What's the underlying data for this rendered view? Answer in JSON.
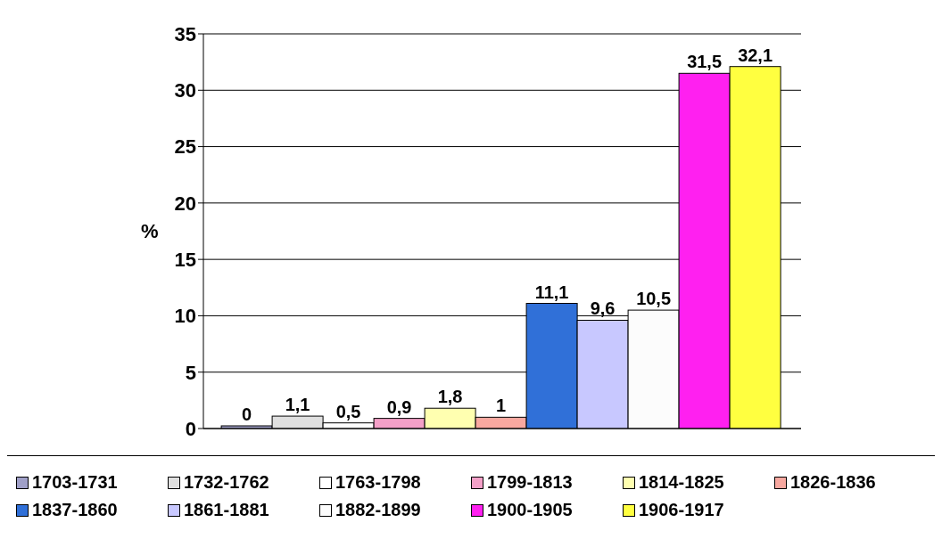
{
  "chart_data": {
    "type": "bar",
    "ylabel": "%",
    "categories": [
      null
    ],
    "ylim": [
      0,
      35
    ],
    "yticks": [
      0,
      5,
      10,
      15,
      20,
      25,
      30,
      35
    ],
    "grid": "y",
    "legend": "bottom",
    "series": [
      {
        "name": "1703-1731",
        "color": "#a0a0c8",
        "values": [
          0
        ],
        "value_labels": [
          "0"
        ]
      },
      {
        "name": "1732-1762",
        "color": "#e0e0e0",
        "values": [
          1.1
        ],
        "value_labels": [
          "1,1"
        ]
      },
      {
        "name": "1763-1798",
        "color": "#ffffff",
        "values": [
          0.5
        ],
        "value_labels": [
          "0,5"
        ]
      },
      {
        "name": "1799-1813",
        "color": "#f4a0c8",
        "values": [
          0.9
        ],
        "value_labels": [
          "0,9"
        ]
      },
      {
        "name": "1814-1825",
        "color": "#ffffb0",
        "values": [
          1.8
        ],
        "value_labels": [
          "1,8"
        ]
      },
      {
        "name": "1826-1836",
        "color": "#f8a8a0",
        "values": [
          1
        ],
        "value_labels": [
          "1"
        ]
      },
      {
        "name": "1837-1860",
        "color": "#3070d8",
        "values": [
          11.1
        ],
        "value_labels": [
          "11,1"
        ]
      },
      {
        "name": "1861-1881",
        "color": "#c8c8ff",
        "values": [
          9.6
        ],
        "value_labels": [
          "9,6"
        ]
      },
      {
        "name": "1882-1899",
        "color": "#fcfcfc",
        "values": [
          10.5
        ],
        "value_labels": [
          "10,5"
        ]
      },
      {
        "name": "1900-1905",
        "color": "#ff20f0",
        "values": [
          31.5
        ],
        "value_labels": [
          "31,5"
        ]
      },
      {
        "name": "1906-1917",
        "color": "#ffff40",
        "values": [
          32.1
        ],
        "value_labels": [
          "32,1"
        ]
      }
    ]
  }
}
